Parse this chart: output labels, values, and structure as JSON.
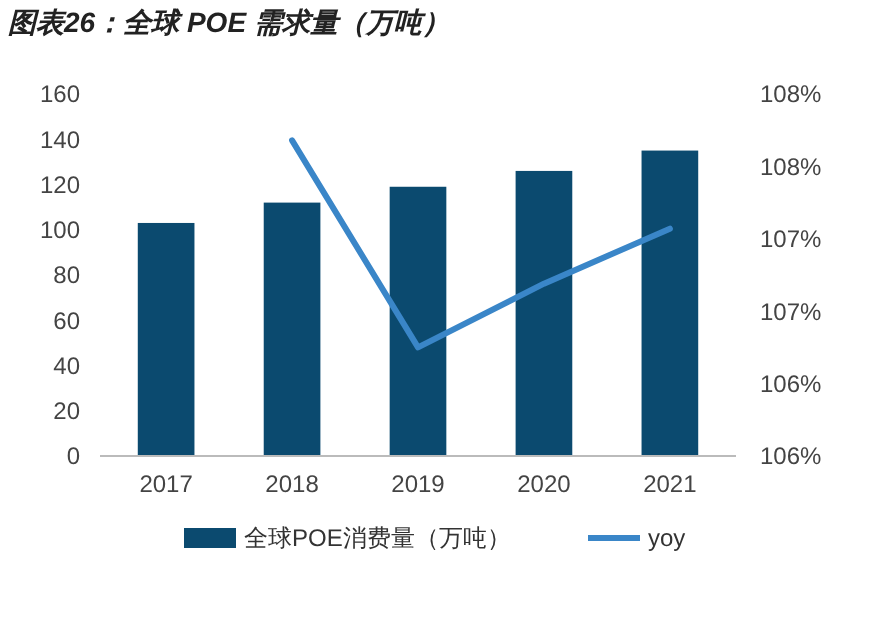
{
  "chart_data": {
    "type": "bar",
    "title": "图表26：全球 POE 需求量（万吨）",
    "categories": [
      "2017",
      "2018",
      "2019",
      "2020",
      "2021"
    ],
    "series": [
      {
        "name": "全球POE消费量（万吨）",
        "color": "#0b4a6f",
        "values": [
          103,
          112,
          119,
          126,
          135
        ]
      },
      {
        "name": "yoy",
        "type": "line",
        "axis": "y2",
        "color": "#3a86c8",
        "values": [
          null,
          108.18,
          106.75,
          107.19,
          107.57
        ]
      }
    ],
    "ylim": [
      0,
      160
    ],
    "yticks": [
      0,
      20,
      40,
      60,
      80,
      100,
      120,
      140,
      160
    ],
    "y2lim": [
      106,
      108.5
    ],
    "y2ticks": [
      {
        "value": 106,
        "label": "106%"
      },
      {
        "value": 106.5,
        "label": "106%"
      },
      {
        "value": 107,
        "label": "107%"
      },
      {
        "value": 107.5,
        "label": "107%"
      },
      {
        "value": 108,
        "label": "108%"
      },
      {
        "value": 108.5,
        "label": "108%"
      }
    ],
    "legend": "bottom",
    "grid": false,
    "marker": "none",
    "line_style": "solid"
  }
}
